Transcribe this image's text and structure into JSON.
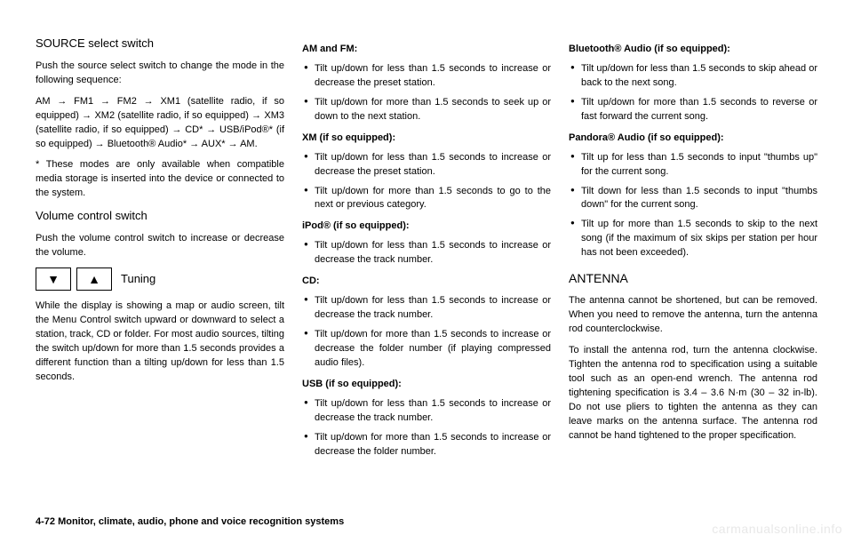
{
  "col1": {
    "h1": "SOURCE select switch",
    "p1": "Push the source select switch to change the mode in the following sequence:",
    "p2": "AM → FM1 → FM2 → XM1 (satellite radio, if so equipped) → XM2 (satellite radio, if so equipped) → XM3 (satellite radio, if so equipped) → CD* → USB/iPod®* (if so equipped) → Bluetooth® Audio* → AUX* → AM.",
    "p3": "* These modes are only available when compatible media storage is inserted into the device or connected to the system.",
    "h2": "Volume control switch",
    "p4": "Push the volume control switch to increase or decrease the volume.",
    "tuning": "Tuning",
    "p5": "While the display is showing a map or audio screen, tilt the Menu Control switch upward or downward to select a station, track, CD or folder. For most audio sources, tilting the switch up/down for more than 1.5 seconds provides a different function than a tilting up/down for less than 1.5 seconds."
  },
  "col2": {
    "h1": "AM and FM:",
    "b1a": "Tilt up/down for less than 1.5 seconds to increase or decrease the preset station.",
    "b1b": "Tilt up/down for more than 1.5 seconds to seek up or down to the next station.",
    "h2": "XM (if so equipped):",
    "b2a": "Tilt up/down for less than 1.5 seconds to increase or decrease the preset station.",
    "b2b": "Tilt up/down for more than 1.5 seconds to go to the next or previous category.",
    "h3": "iPod® (if so equipped):",
    "b3a": "Tilt up/down for less than 1.5 seconds to increase or decrease the track number.",
    "h4": "CD:",
    "b4a": "Tilt up/down for less than 1.5 seconds to increase or decrease the track number.",
    "b4b": "Tilt up/down for more than 1.5 seconds to increase or decrease the folder number (if playing compressed audio files).",
    "h5": "USB (if so equipped):",
    "b5a": "Tilt up/down for less than 1.5 seconds to increase or decrease the track number.",
    "b5b": "Tilt up/down for more than 1.5 seconds to increase or decrease the folder number."
  },
  "col3": {
    "h1": "Bluetooth® Audio (if so equipped):",
    "b1a": "Tilt up/down for less than 1.5 seconds to skip ahead or back to the next song.",
    "b1b": "Tilt up/down for more than 1.5 seconds to reverse or fast forward the current song.",
    "h2": "Pandora® Audio (if so equipped):",
    "b2a": "Tilt up for less than 1.5 seconds to input \"thumbs up\" for the current song.",
    "b2b": "Tilt down for less than 1.5 seconds to input \"thumbs down\" for the current song.",
    "b2c": "Tilt up for more than 1.5 seconds to skip to the next song (if the maximum of six skips per station per hour has not been exceeded).",
    "h3": "ANTENNA",
    "p1": "The antenna cannot be shortened, but can be removed. When you need to remove the antenna, turn the antenna rod counterclockwise.",
    "p2": "To install the antenna rod, turn the antenna clockwise. Tighten the antenna rod to specification using a suitable tool such as an open-end wrench. The antenna rod tightening specification is 3.4 – 3.6 N·m (30 – 32 in-lb). Do not use pliers to tighten the antenna as they can leave marks on the antenna surface. The antenna rod cannot be hand tightened to the proper specification."
  },
  "footer": "4-72   Monitor, climate, audio, phone and voice recognition systems",
  "watermark": "carmanualsonline.info"
}
